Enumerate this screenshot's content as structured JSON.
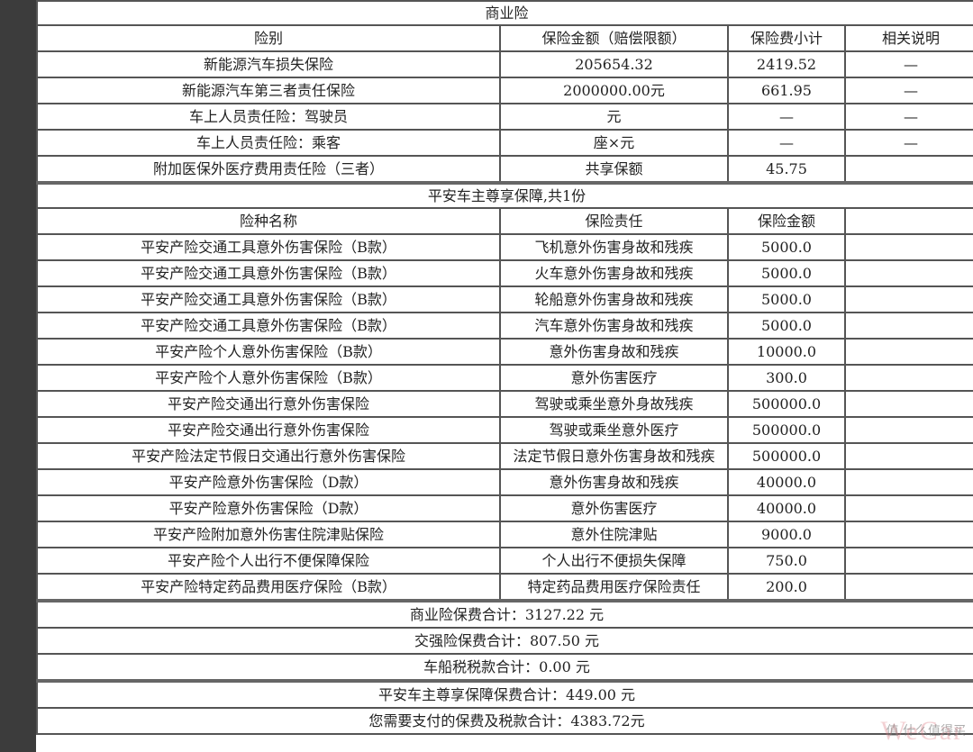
{
  "commercial": {
    "title": "商业险",
    "headers": [
      "险别",
      "保险金额（赔偿限额）",
      "保险费小计",
      "相关说明"
    ],
    "rows": [
      [
        "新能源汽车损失保险",
        "205654.32",
        "2419.52",
        "—"
      ],
      [
        "新能源汽车第三者责任保险",
        "2000000.00元",
        "661.95",
        "—"
      ],
      [
        "车上人员责任险：驾驶员",
        "元",
        "—",
        "—"
      ],
      [
        "车上人员责任险：乘客",
        "座×元",
        "—",
        "—"
      ],
      [
        "附加医保外医疗费用责任险（三者）",
        "共享保额",
        "45.75",
        ""
      ]
    ]
  },
  "pingan": {
    "title": "平安车主尊享保障,共1份",
    "headers": [
      "险种名称",
      "保险责任",
      "保险金额",
      ""
    ],
    "rows": [
      [
        "平安产险交通工具意外伤害保险（B款）",
        "飞机意外伤害身故和残疾",
        "5000.0",
        ""
      ],
      [
        "平安产险交通工具意外伤害保险（B款）",
        "火车意外伤害身故和残疾",
        "5000.0",
        ""
      ],
      [
        "平安产险交通工具意外伤害保险（B款）",
        "轮船意外伤害身故和残疾",
        "5000.0",
        ""
      ],
      [
        "平安产险交通工具意外伤害保险（B款）",
        "汽车意外伤害身故和残疾",
        "5000.0",
        ""
      ],
      [
        "平安产险个人意外伤害保险（B款）",
        "意外伤害身故和残疾",
        "10000.0",
        ""
      ],
      [
        "平安产险个人意外伤害保险（B款）",
        "意外伤害医疗",
        "300.0",
        ""
      ],
      [
        "平安产险交通出行意外伤害保险",
        "驾驶或乘坐意外身故残疾",
        "500000.0",
        ""
      ],
      [
        "平安产险交通出行意外伤害保险",
        "驾驶或乘坐意外医疗",
        "500000.0",
        ""
      ],
      [
        "平安产险法定节假日交通出行意外伤害保险",
        "法定节假日意外伤害身故和残疾",
        "500000.0",
        ""
      ],
      [
        "平安产险意外伤害保险（D款）",
        "意外伤害身故和残疾",
        "40000.0",
        ""
      ],
      [
        "平安产险意外伤害保险（D款）",
        "意外伤害医疗",
        "40000.0",
        ""
      ],
      [
        "平安产险附加意外伤害住院津贴保险",
        "意外住院津贴",
        "9000.0",
        ""
      ],
      [
        "平安产险个人出行不便保障保险",
        "个人出行不便损失保障",
        "750.0",
        ""
      ],
      [
        "平安产险特定药品费用医疗保险（B款）",
        "特定药品费用医疗保险责任",
        "200.0",
        ""
      ]
    ]
  },
  "totals": [
    "商业险保费合计：3127.22 元",
    "交强险保费合计：807.50 元",
    "车船税税款合计：0.00 元",
    "平安车主尊享保障保费合计：449.00 元",
    "您需要支付的保费及税款合计：4383.72元"
  ],
  "watermark": {
    "text": "WeCar",
    "site": "值 什么值得买"
  }
}
